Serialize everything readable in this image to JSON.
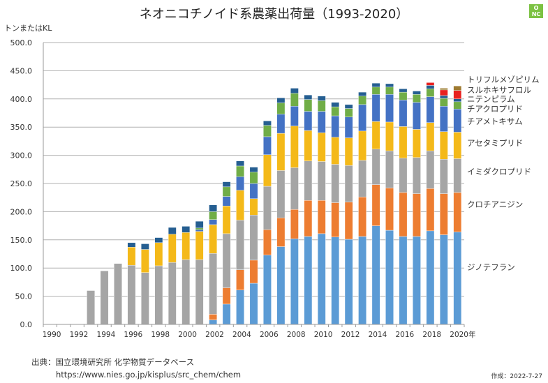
{
  "title": "ネオニコチノイド系農薬出荷量（1993-2020）",
  "logo": {
    "top": "O",
    "bottom": "NC",
    "color": "#7cc243"
  },
  "unit_label": "トンまたはKL",
  "footer": {
    "source": "出典：国立環境研究所 化学物質データベース",
    "url": "https://www.nies.go.jp/kisplus/src_chem/chem",
    "created": "作成：2022-7-27"
  },
  "chart_data": {
    "type": "bar",
    "stacked": true,
    "title": "ネオニコチノイド系農薬出荷量（1993-2020）",
    "xlabel": "年",
    "ylabel": "トンまたはKL",
    "ylim": [
      0,
      500
    ],
    "yticks": [
      "0.0",
      "50.0",
      "100.0",
      "150.0",
      "200.0",
      "250.0",
      "300.0",
      "350.0",
      "400.0",
      "450.0",
      "500.0"
    ],
    "xtick_labels": [
      "1990",
      "1992",
      "1994",
      "1996",
      "1998",
      "2000",
      "2002",
      "2004",
      "2006",
      "2008",
      "2010",
      "2012",
      "2014",
      "2016",
      "2018",
      "2020年"
    ],
    "grid": "horizontal",
    "legend_placement": "right (inline labels)",
    "categories": [
      1990,
      1991,
      1992,
      1993,
      1994,
      1995,
      1996,
      1997,
      1998,
      1999,
      2000,
      2001,
      2002,
      2003,
      2004,
      2005,
      2006,
      2007,
      2008,
      2009,
      2010,
      2011,
      2012,
      2013,
      2014,
      2015,
      2016,
      2017,
      2018,
      2019,
      2020
    ],
    "series": [
      {
        "name": "ジノテフラン",
        "color": "#5b9bd5",
        "values": [
          0,
          0,
          0,
          0,
          0,
          0,
          0,
          0,
          0,
          0,
          0,
          0,
          8,
          36,
          61,
          73,
          123,
          138,
          152,
          156,
          161,
          155,
          151,
          156,
          175,
          167,
          156,
          156,
          166,
          159,
          164
        ]
      },
      {
        "name": "クロチアニジン",
        "color": "#ed7d31",
        "values": [
          0,
          0,
          0,
          0,
          0,
          0,
          0,
          0,
          0,
          0,
          0,
          0,
          10,
          29,
          36,
          41,
          45,
          51,
          52,
          64,
          59,
          61,
          66,
          70,
          73,
          75,
          78,
          76,
          75,
          73,
          70
        ]
      },
      {
        "name": "イミダクロプリド",
        "color": "#a5a5a5",
        "values": [
          0,
          0,
          0,
          60,
          95,
          108,
          105,
          92,
          104,
          110,
          115,
          115,
          108,
          96,
          88,
          80,
          77,
          84,
          74,
          70,
          69,
          68,
          65,
          65,
          63,
          66,
          61,
          64,
          67,
          61,
          60
        ]
      },
      {
        "name": "アセタミプリド",
        "color": "#f4b919",
        "values": [
          0,
          0,
          0,
          0,
          0,
          0,
          32,
          41,
          41,
          50,
          48,
          50,
          51,
          49,
          53,
          29,
          56,
          66,
          74,
          54,
          51,
          48,
          49,
          52,
          49,
          51,
          56,
          50,
          50,
          49,
          47
        ]
      },
      {
        "name": "チアメトキサム",
        "color": "#4472c4",
        "values": [
          0,
          0,
          0,
          0,
          0,
          0,
          0,
          0,
          0,
          0,
          0,
          3,
          9,
          17,
          24,
          27,
          32,
          34,
          35,
          34,
          38,
          38,
          37,
          47,
          48,
          49,
          47,
          48,
          46,
          45,
          41
        ]
      },
      {
        "name": "チアクロプリド",
        "color": "#70ad47",
        "values": [
          0,
          0,
          0,
          0,
          0,
          0,
          0,
          0,
          0,
          0,
          0,
          3,
          14,
          17,
          19,
          20,
          20,
          20,
          23,
          21,
          19,
          16,
          15,
          15,
          13,
          13,
          14,
          14,
          14,
          14,
          13
        ]
      },
      {
        "name": "ニテンピラム",
        "color": "#255e91",
        "values": [
          0,
          0,
          0,
          0,
          0,
          0,
          8,
          10,
          9,
          12,
          11,
          12,
          12,
          9,
          9,
          9,
          8,
          9,
          9,
          8,
          8,
          8,
          7,
          7,
          7,
          6,
          6,
          6,
          6,
          5,
          5
        ]
      },
      {
        "name": "スルホキサフロル",
        "color": "#e8211f",
        "values": [
          0,
          0,
          0,
          0,
          0,
          0,
          0,
          0,
          0,
          0,
          0,
          0,
          0,
          0,
          0,
          0,
          0,
          0,
          0,
          0,
          0,
          0,
          0,
          0,
          0,
          0,
          0,
          0,
          5,
          10,
          15
        ]
      },
      {
        "name": "トリフルメゾピリム",
        "color": "#9e7a30",
        "values": [
          0,
          0,
          0,
          0,
          0,
          0,
          0,
          0,
          0,
          0,
          0,
          0,
          0,
          0,
          0,
          0,
          0,
          0,
          0,
          0,
          0,
          0,
          0,
          0,
          0,
          0,
          0,
          0,
          0,
          3,
          8
        ]
      }
    ],
    "legend_order_top_to_bottom": [
      "トリフルメゾピリム",
      "スルホキサフロル",
      "ニテンピラム",
      "チアクロプリド",
      "チアメトキサム",
      "アセタミプリド",
      "イミダクロプリド",
      "クロチアニジン",
      "ジノテフラン"
    ]
  }
}
